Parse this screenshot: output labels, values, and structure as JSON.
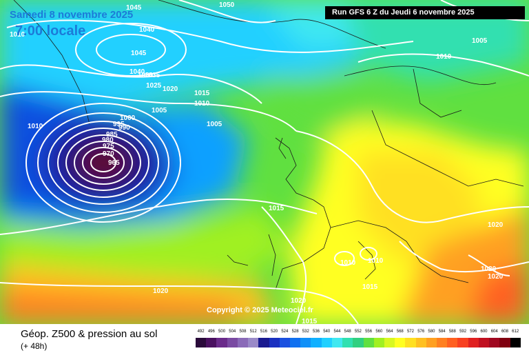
{
  "header": {
    "date": "Samedi 8 novembre 2025",
    "time": "7:00 locale",
    "run": "Run GFS 6 Z du Jeudi 6 novembre 2025"
  },
  "copyright": "Copyright © 2025 Meteociel.fr",
  "footer": {
    "title": "Géop. Z500 & pression au sol",
    "lead": "(+ 48h)"
  },
  "legend": {
    "values": [
      "492",
      "496",
      "500",
      "504",
      "508",
      "512",
      "516",
      "520",
      "524",
      "528",
      "532",
      "536",
      "540",
      "544",
      "548",
      "552",
      "556",
      "560",
      "564",
      "568",
      "572",
      "576",
      "580",
      "584",
      "588",
      "592",
      "596",
      "600",
      "604",
      "608",
      "612"
    ],
    "colors": [
      "#2a0a3a",
      "#4a1060",
      "#6a2a8a",
      "#7a4aa2",
      "#8a6ab8",
      "#9a8ac8",
      "#1a1a90",
      "#1a30c0",
      "#1a50e0",
      "#1070f0",
      "#1090f8",
      "#10b0ff",
      "#20d0ff",
      "#40e8f0",
      "#30e0b0",
      "#30d080",
      "#60e040",
      "#a0f020",
      "#d8f820",
      "#ffff20",
      "#ffe020",
      "#ffc020",
      "#ffa020",
      "#ff8020",
      "#ff6020",
      "#f84020",
      "#e02020",
      "#c01020",
      "#a00820",
      "#800010",
      "#000000"
    ]
  },
  "isobars": [
    {
      "label": "1045"
    },
    {
      "label": "1050"
    },
    {
      "label": "1040"
    },
    {
      "label": "1045"
    },
    {
      "label": "1040"
    },
    {
      "label": "1035"
    },
    {
      "label": "1030"
    },
    {
      "label": "1025"
    },
    {
      "label": "1020"
    },
    {
      "label": "1015"
    },
    {
      "label": "1010"
    },
    {
      "label": "1005"
    },
    {
      "label": "1000"
    },
    {
      "label": "995"
    },
    {
      "label": "990"
    },
    {
      "label": "985"
    },
    {
      "label": "980"
    },
    {
      "label": "975"
    },
    {
      "label": "970"
    },
    {
      "label": "965"
    },
    {
      "label": "1010"
    },
    {
      "label": "1005"
    },
    {
      "label": "1010"
    },
    {
      "label": "1015"
    },
    {
      "label": "1010"
    },
    {
      "label": "1010"
    },
    {
      "label": "1015"
    },
    {
      "label": "1020"
    },
    {
      "label": "1020"
    },
    {
      "label": "1020"
    },
    {
      "label": "1020"
    },
    {
      "label": "1020"
    },
    {
      "label": "1015"
    },
    {
      "label": "1010"
    },
    {
      "label": "1005"
    }
  ]
}
